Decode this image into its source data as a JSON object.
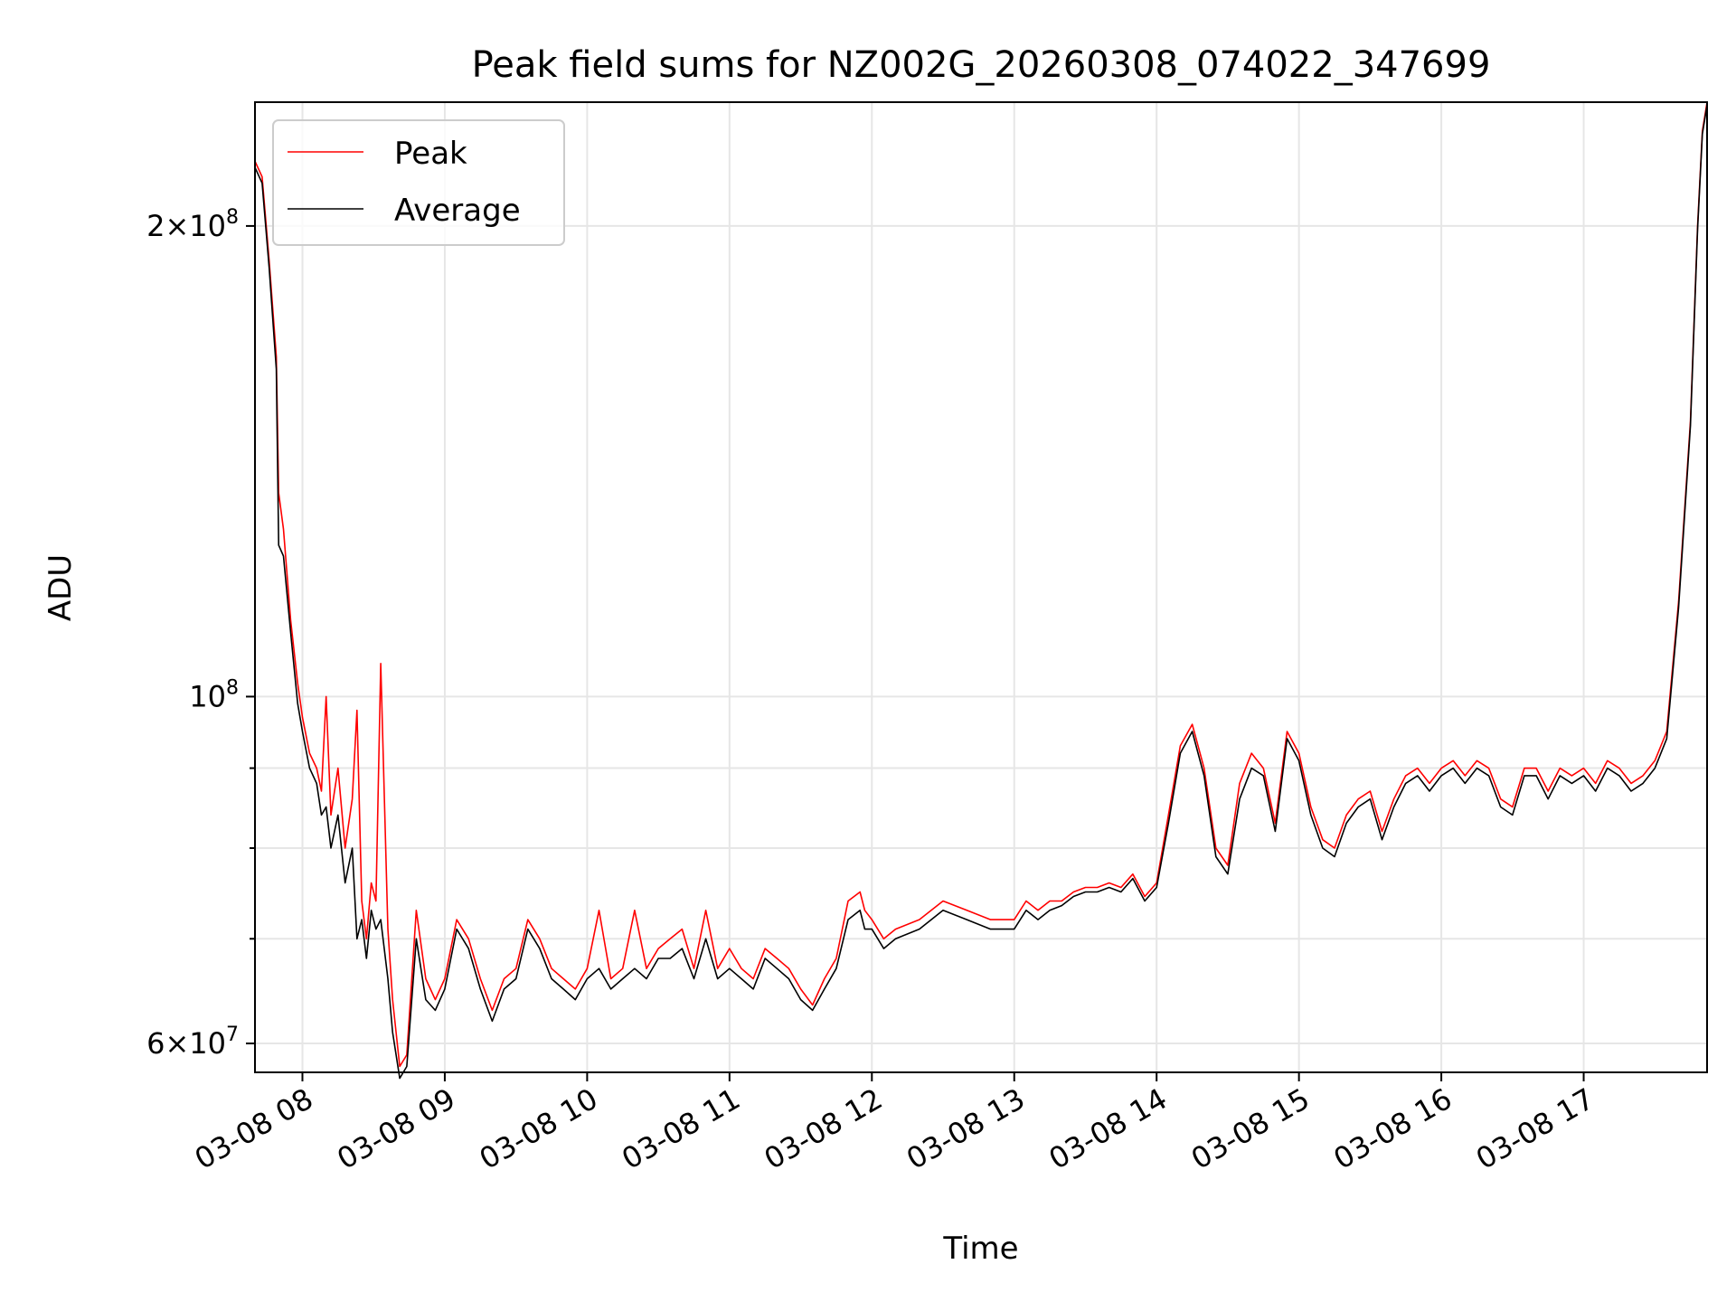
{
  "chart_data": {
    "type": "line",
    "title": "Peak field sums for NZ002G_20260308_074022_347699",
    "xlabel": "Time",
    "ylabel": "ADU",
    "y_scale": "log",
    "ylim": [
      57500000,
      240000000
    ],
    "xlim": [
      "2026-03-08 07:40",
      "2026-03-08 17:52"
    ],
    "grid": true,
    "legend_position": "upper-left",
    "x_ticks": [
      "03-08 08",
      "03-08 09",
      "03-08 10",
      "03-08 11",
      "03-08 12",
      "03-08 13",
      "03-08 14",
      "03-08 15",
      "03-08 16",
      "03-08 17"
    ],
    "y_major_ticks": [
      {
        "value": 60000000,
        "mantissa": "6",
        "exponent": "7"
      },
      {
        "value": 100000000,
        "mantissa": "",
        "exponent": "8"
      },
      {
        "value": 200000000,
        "mantissa": "2",
        "exponent": "8"
      }
    ],
    "y_minor_ticks": [
      70000000,
      80000000,
      90000000
    ],
    "series": [
      {
        "name": "Peak",
        "color": "#ff0000",
        "x": [
          "2026-03-08 07:40",
          "2026-03-08 07:43",
          "2026-03-08 07:46",
          "2026-03-08 07:49",
          "2026-03-08 07:50",
          "2026-03-08 07:52",
          "2026-03-08 07:55",
          "2026-03-08 07:58",
          "2026-03-08 08:00",
          "2026-03-08 08:03",
          "2026-03-08 08:06",
          "2026-03-08 08:08",
          "2026-03-08 08:10",
          "2026-03-08 08:12",
          "2026-03-08 08:15",
          "2026-03-08 08:18",
          "2026-03-08 08:21",
          "2026-03-08 08:23",
          "2026-03-08 08:25",
          "2026-03-08 08:27",
          "2026-03-08 08:29",
          "2026-03-08 08:31",
          "2026-03-08 08:33",
          "2026-03-08 08:36",
          "2026-03-08 08:38",
          "2026-03-08 08:41",
          "2026-03-08 08:44",
          "2026-03-08 08:48",
          "2026-03-08 08:52",
          "2026-03-08 08:56",
          "2026-03-08 09:00",
          "2026-03-08 09:05",
          "2026-03-08 09:10",
          "2026-03-08 09:15",
          "2026-03-08 09:20",
          "2026-03-08 09:25",
          "2026-03-08 09:30",
          "2026-03-08 09:35",
          "2026-03-08 09:40",
          "2026-03-08 09:45",
          "2026-03-08 09:50",
          "2026-03-08 09:55",
          "2026-03-08 10:00",
          "2026-03-08 10:05",
          "2026-03-08 10:10",
          "2026-03-08 10:15",
          "2026-03-08 10:20",
          "2026-03-08 10:25",
          "2026-03-08 10:30",
          "2026-03-08 10:35",
          "2026-03-08 10:40",
          "2026-03-08 10:45",
          "2026-03-08 10:50",
          "2026-03-08 10:55",
          "2026-03-08 11:00",
          "2026-03-08 11:05",
          "2026-03-08 11:10",
          "2026-03-08 11:15",
          "2026-03-08 11:20",
          "2026-03-08 11:25",
          "2026-03-08 11:30",
          "2026-03-08 11:35",
          "2026-03-08 11:40",
          "2026-03-08 11:45",
          "2026-03-08 11:50",
          "2026-03-08 11:55",
          "2026-03-08 11:57",
          "2026-03-08 12:00",
          "2026-03-08 12:05",
          "2026-03-08 12:10",
          "2026-03-08 12:20",
          "2026-03-08 12:30",
          "2026-03-08 12:40",
          "2026-03-08 12:50",
          "2026-03-08 13:00",
          "2026-03-08 13:05",
          "2026-03-08 13:10",
          "2026-03-08 13:15",
          "2026-03-08 13:20",
          "2026-03-08 13:25",
          "2026-03-08 13:30",
          "2026-03-08 13:35",
          "2026-03-08 13:40",
          "2026-03-08 13:45",
          "2026-03-08 13:50",
          "2026-03-08 13:55",
          "2026-03-08 14:00",
          "2026-03-08 14:05",
          "2026-03-08 14:10",
          "2026-03-08 14:15",
          "2026-03-08 14:20",
          "2026-03-08 14:25",
          "2026-03-08 14:30",
          "2026-03-08 14:35",
          "2026-03-08 14:40",
          "2026-03-08 14:45",
          "2026-03-08 14:50",
          "2026-03-08 14:55",
          "2026-03-08 15:00",
          "2026-03-08 15:05",
          "2026-03-08 15:10",
          "2026-03-08 15:15",
          "2026-03-08 15:20",
          "2026-03-08 15:25",
          "2026-03-08 15:30",
          "2026-03-08 15:35",
          "2026-03-08 15:40",
          "2026-03-08 15:45",
          "2026-03-08 15:50",
          "2026-03-08 15:55",
          "2026-03-08 16:00",
          "2026-03-08 16:05",
          "2026-03-08 16:10",
          "2026-03-08 16:15",
          "2026-03-08 16:20",
          "2026-03-08 16:25",
          "2026-03-08 16:30",
          "2026-03-08 16:35",
          "2026-03-08 16:40",
          "2026-03-08 16:45",
          "2026-03-08 16:50",
          "2026-03-08 16:55",
          "2026-03-08 17:00",
          "2026-03-08 17:05",
          "2026-03-08 17:10",
          "2026-03-08 17:15",
          "2026-03-08 17:20",
          "2026-03-08 17:25",
          "2026-03-08 17:30",
          "2026-03-08 17:35",
          "2026-03-08 17:40",
          "2026-03-08 17:45",
          "2026-03-08 17:48",
          "2026-03-08 17:50",
          "2026-03-08 17:52"
        ],
        "y": [
          220000000,
          215000000,
          190000000,
          165000000,
          135000000,
          128000000,
          112000000,
          102000000,
          97000000,
          92000000,
          90000000,
          87000000,
          100000000,
          84000000,
          90000000,
          80000000,
          86000000,
          98000000,
          74000000,
          70000000,
          76000000,
          74000000,
          105000000,
          71000000,
          64000000,
          58000000,
          59000000,
          73000000,
          66000000,
          64000000,
          66000000,
          72000000,
          70000000,
          66000000,
          63000000,
          66000000,
          67000000,
          72000000,
          70000000,
          67000000,
          66000000,
          65000000,
          67000000,
          73000000,
          66000000,
          67000000,
          73000000,
          67000000,
          69000000,
          70000000,
          71000000,
          67000000,
          73000000,
          67000000,
          69000000,
          67000000,
          66000000,
          69000000,
          68000000,
          67000000,
          65000000,
          63500000,
          66000000,
          68000000,
          74000000,
          75000000,
          73000000,
          72000000,
          70000000,
          71000000,
          72000000,
          74000000,
          73000000,
          72000000,
          72000000,
          74000000,
          73000000,
          74000000,
          74000000,
          75000000,
          75500000,
          75500000,
          76000000,
          75500000,
          77000000,
          74500000,
          76000000,
          84000000,
          93000000,
          96000000,
          90000000,
          80000000,
          78000000,
          88000000,
          92000000,
          90000000,
          83000000,
          95000000,
          92000000,
          85000000,
          81000000,
          80000000,
          84000000,
          86000000,
          87000000,
          82000000,
          86000000,
          89000000,
          90000000,
          88000000,
          90000000,
          91000000,
          89000000,
          91000000,
          90000000,
          86000000,
          85000000,
          90000000,
          90000000,
          87000000,
          90000000,
          89000000,
          90000000,
          88000000,
          91000000,
          90000000,
          88000000,
          89000000,
          91000000,
          95000000,
          115000000,
          150000000,
          200000000,
          230000000,
          240000000
        ]
      },
      {
        "name": "Average",
        "color": "#000000",
        "x": [
          "2026-03-08 07:40",
          "2026-03-08 07:43",
          "2026-03-08 07:46",
          "2026-03-08 07:49",
          "2026-03-08 07:50",
          "2026-03-08 07:52",
          "2026-03-08 07:55",
          "2026-03-08 07:58",
          "2026-03-08 08:00",
          "2026-03-08 08:03",
          "2026-03-08 08:06",
          "2026-03-08 08:08",
          "2026-03-08 08:10",
          "2026-03-08 08:12",
          "2026-03-08 08:15",
          "2026-03-08 08:18",
          "2026-03-08 08:21",
          "2026-03-08 08:23",
          "2026-03-08 08:25",
          "2026-03-08 08:27",
          "2026-03-08 08:29",
          "2026-03-08 08:31",
          "2026-03-08 08:33",
          "2026-03-08 08:36",
          "2026-03-08 08:38",
          "2026-03-08 08:41",
          "2026-03-08 08:44",
          "2026-03-08 08:48",
          "2026-03-08 08:52",
          "2026-03-08 08:56",
          "2026-03-08 09:00",
          "2026-03-08 09:05",
          "2026-03-08 09:10",
          "2026-03-08 09:15",
          "2026-03-08 09:20",
          "2026-03-08 09:25",
          "2026-03-08 09:30",
          "2026-03-08 09:35",
          "2026-03-08 09:40",
          "2026-03-08 09:45",
          "2026-03-08 09:50",
          "2026-03-08 09:55",
          "2026-03-08 10:00",
          "2026-03-08 10:05",
          "2026-03-08 10:10",
          "2026-03-08 10:15",
          "2026-03-08 10:20",
          "2026-03-08 10:25",
          "2026-03-08 10:30",
          "2026-03-08 10:35",
          "2026-03-08 10:40",
          "2026-03-08 10:45",
          "2026-03-08 10:50",
          "2026-03-08 10:55",
          "2026-03-08 11:00",
          "2026-03-08 11:05",
          "2026-03-08 11:10",
          "2026-03-08 11:15",
          "2026-03-08 11:20",
          "2026-03-08 11:25",
          "2026-03-08 11:30",
          "2026-03-08 11:35",
          "2026-03-08 11:40",
          "2026-03-08 11:45",
          "2026-03-08 11:50",
          "2026-03-08 11:55",
          "2026-03-08 11:57",
          "2026-03-08 12:00",
          "2026-03-08 12:05",
          "2026-03-08 12:10",
          "2026-03-08 12:20",
          "2026-03-08 12:30",
          "2026-03-08 12:40",
          "2026-03-08 12:50",
          "2026-03-08 13:00",
          "2026-03-08 13:05",
          "2026-03-08 13:10",
          "2026-03-08 13:15",
          "2026-03-08 13:20",
          "2026-03-08 13:25",
          "2026-03-08 13:30",
          "2026-03-08 13:35",
          "2026-03-08 13:40",
          "2026-03-08 13:45",
          "2026-03-08 13:50",
          "2026-03-08 13:55",
          "2026-03-08 14:00",
          "2026-03-08 14:05",
          "2026-03-08 14:10",
          "2026-03-08 14:15",
          "2026-03-08 14:20",
          "2026-03-08 14:25",
          "2026-03-08 14:30",
          "2026-03-08 14:35",
          "2026-03-08 14:40",
          "2026-03-08 14:45",
          "2026-03-08 14:50",
          "2026-03-08 14:55",
          "2026-03-08 15:00",
          "2026-03-08 15:05",
          "2026-03-08 15:10",
          "2026-03-08 15:15",
          "2026-03-08 15:20",
          "2026-03-08 15:25",
          "2026-03-08 15:30",
          "2026-03-08 15:35",
          "2026-03-08 15:40",
          "2026-03-08 15:45",
          "2026-03-08 15:50",
          "2026-03-08 15:55",
          "2026-03-08 16:00",
          "2026-03-08 16:05",
          "2026-03-08 16:10",
          "2026-03-08 16:15",
          "2026-03-08 16:20",
          "2026-03-08 16:25",
          "2026-03-08 16:30",
          "2026-03-08 16:35",
          "2026-03-08 16:40",
          "2026-03-08 16:45",
          "2026-03-08 16:50",
          "2026-03-08 16:55",
          "2026-03-08 17:00",
          "2026-03-08 17:05",
          "2026-03-08 17:10",
          "2026-03-08 17:15",
          "2026-03-08 17:20",
          "2026-03-08 17:25",
          "2026-03-08 17:30",
          "2026-03-08 17:35",
          "2026-03-08 17:40",
          "2026-03-08 17:45",
          "2026-03-08 17:48",
          "2026-03-08 17:50",
          "2026-03-08 17:52"
        ],
        "y": [
          218000000,
          213000000,
          188000000,
          162000000,
          125000000,
          123000000,
          110000000,
          99000000,
          95000000,
          90000000,
          88000000,
          84000000,
          85000000,
          80000000,
          84000000,
          76000000,
          80000000,
          70000000,
          72000000,
          68000000,
          73000000,
          71000000,
          72000000,
          66000000,
          61000000,
          57000000,
          58000000,
          70000000,
          64000000,
          63000000,
          65000000,
          71000000,
          69000000,
          65000000,
          62000000,
          65000000,
          66000000,
          71000000,
          69000000,
          66000000,
          65000000,
          64000000,
          66000000,
          67000000,
          65000000,
          66000000,
          67000000,
          66000000,
          68000000,
          68000000,
          69000000,
          66000000,
          70000000,
          66000000,
          67000000,
          66000000,
          65000000,
          68000000,
          67000000,
          66000000,
          64000000,
          63000000,
          65000000,
          67000000,
          72000000,
          73000000,
          71000000,
          71000000,
          69000000,
          70000000,
          71000000,
          73000000,
          72000000,
          71000000,
          71000000,
          73000000,
          72000000,
          73000000,
          73500000,
          74500000,
          75000000,
          75000000,
          75500000,
          75000000,
          76500000,
          74000000,
          75500000,
          83000000,
          92000000,
          95000000,
          89000000,
          79000000,
          77000000,
          86000000,
          90000000,
          89000000,
          82000000,
          94000000,
          91000000,
          84000000,
          80000000,
          79000000,
          83000000,
          85000000,
          86000000,
          81000000,
          85000000,
          88000000,
          89000000,
          87000000,
          89000000,
          90000000,
          88000000,
          90000000,
          89000000,
          85000000,
          84000000,
          89000000,
          89000000,
          86000000,
          89000000,
          88000000,
          89000000,
          87000000,
          90000000,
          89000000,
          87000000,
          88000000,
          90000000,
          94000000,
          114000000,
          149000000,
          199000000,
          229000000,
          239000000
        ]
      }
    ]
  }
}
